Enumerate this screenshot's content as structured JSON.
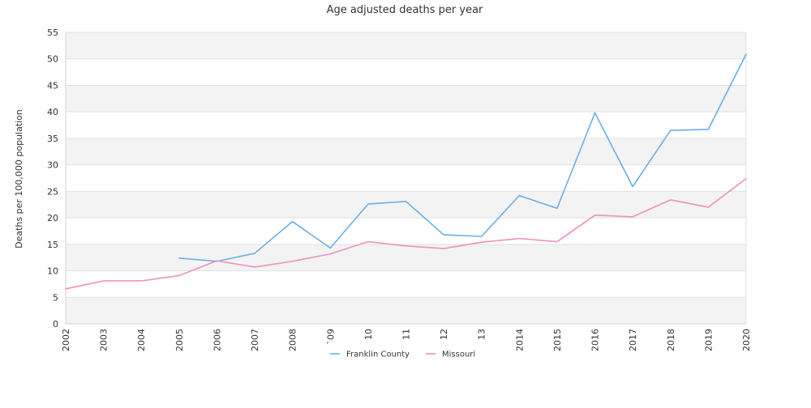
{
  "chart_data": {
    "type": "line",
    "title": "Age adjusted deaths per year",
    "xlabel": "",
    "ylabel": "Deaths per 100,000 population",
    "x": [
      "2002",
      "2003",
      "2004",
      "2005",
      "2006",
      "2007",
      "2008",
      "2009",
      "2010",
      "2011",
      "2012",
      "2013",
      "2014",
      "2015",
      "2016",
      "2017",
      "2018",
      "2019",
      "2020"
    ],
    "x_tick_labels": [
      "2002",
      "2003",
      "2004",
      "2005",
      "2006",
      "2007",
      "2008",
      "`09",
      "10",
      "11",
      "12",
      "13",
      "2014",
      "2015",
      "2016",
      "2017",
      "2018",
      "2019",
      "2020"
    ],
    "ylim": [
      0,
      55
    ],
    "yticks": [
      0,
      5,
      10,
      15,
      20,
      25,
      30,
      35,
      40,
      45,
      50,
      55
    ],
    "grid": "alternating horizontal bands",
    "legend": "bottom-center",
    "series": [
      {
        "name": "Franklin County",
        "color": "#6aaee8",
        "values": [
          null,
          null,
          null,
          12.4,
          11.8,
          13.3,
          19.3,
          14.3,
          22.6,
          23.1,
          16.8,
          16.5,
          24.2,
          21.8,
          39.8,
          25.9,
          36.5,
          36.7,
          50.9
        ]
      },
      {
        "name": "Missouri",
        "color": "#ee8fbf",
        "values": [
          6.6,
          8.1,
          8.1,
          9.1,
          11.9,
          10.7,
          11.8,
          13.2,
          15.5,
          14.7,
          14.2,
          15.4,
          16.1,
          15.5,
          20.5,
          20.2,
          23.4,
          22.0,
          27.4
        ]
      }
    ]
  }
}
